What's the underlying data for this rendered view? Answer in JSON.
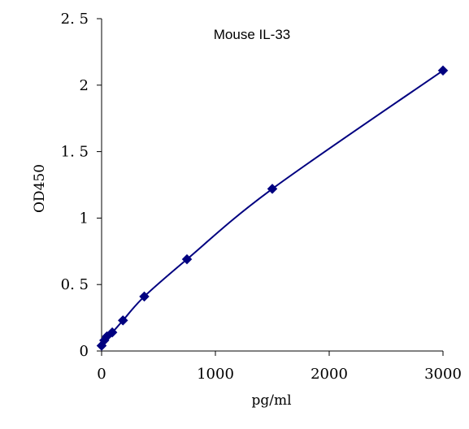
{
  "chart_data": {
    "type": "scatter",
    "title": "Mouse    IL-33",
    "xlabel": "pg/ml",
    "ylabel": "OD450",
    "xlim": [
      0,
      3000
    ],
    "ylim": [
      0,
      2.5
    ],
    "x_ticks": [
      {
        "value": 0,
        "label": "0"
      },
      {
        "value": 1000,
        "label": "1000"
      },
      {
        "value": 2000,
        "label": "2000"
      },
      {
        "value": 3000,
        "label": "3000"
      }
    ],
    "y_ticks": [
      {
        "value": 0,
        "label": "0"
      },
      {
        "value": 0.5,
        "label": "0. 5"
      },
      {
        "value": 1,
        "label": "1"
      },
      {
        "value": 1.5,
        "label": "1. 5"
      },
      {
        "value": 2,
        "label": "2"
      },
      {
        "value": 2.5,
        "label": "2. 5"
      }
    ],
    "grid": false,
    "legend": "none",
    "series": [
      {
        "x": [
          0,
          23.4,
          46.9,
          93.75,
          187.5,
          375,
          750,
          1500,
          3000
        ],
        "y": [
          0.04,
          0.08,
          0.11,
          0.14,
          0.23,
          0.41,
          0.69,
          1.22,
          2.11
        ],
        "color": "#000080",
        "marker": "diamond",
        "smooth_line": true
      }
    ]
  }
}
